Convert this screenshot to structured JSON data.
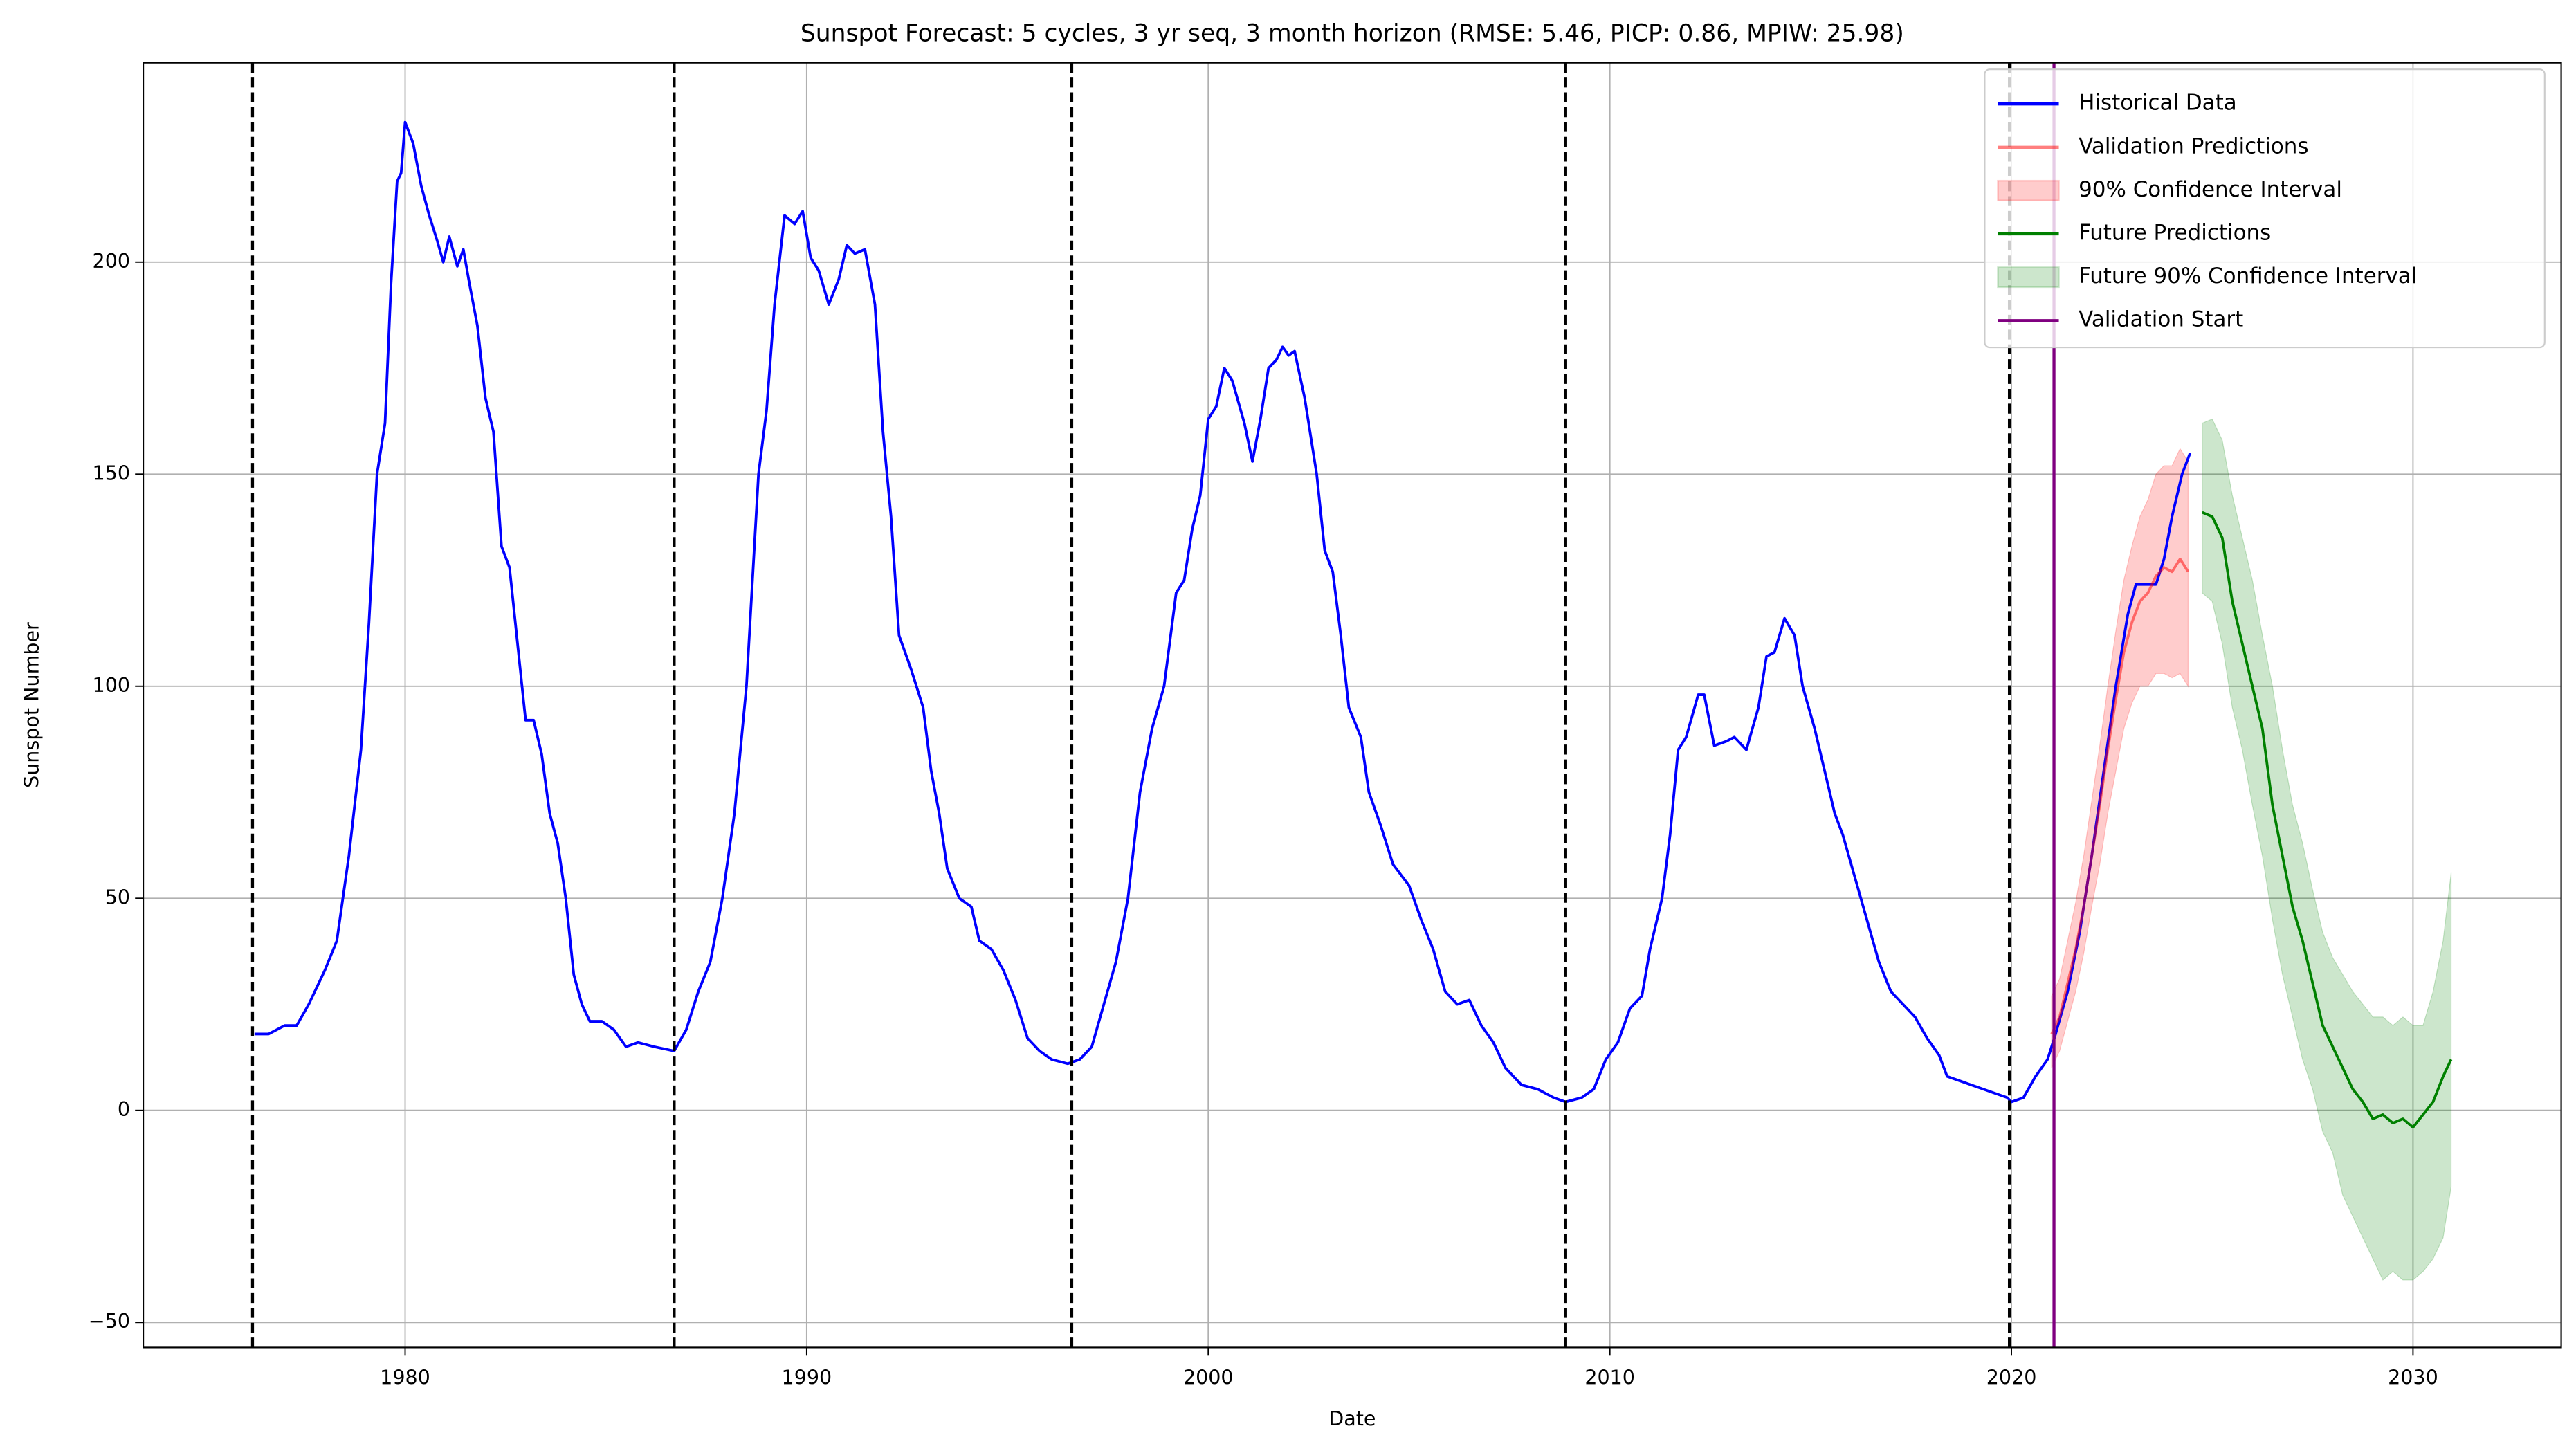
{
  "chart_data": {
    "type": "line",
    "title": "Sunspot Forecast: 5 cycles, 3 yr seq, 3 month horizon (RMSE: 5.46, PICP: 0.86, MPIW: 25.98)",
    "xlabel": "Date",
    "ylabel": "Sunspot Number",
    "xlim": [
      1973.48,
      2033.69
    ],
    "ylim": [
      -55.9,
      247
    ],
    "xticks": [
      1980,
      1990,
      2000,
      2010,
      2020,
      2030
    ],
    "yticks": [
      {
        "value": -50,
        "label": "−50"
      },
      0,
      50,
      100,
      150,
      200
    ],
    "grid": true,
    "legend": "upper right",
    "cycle_boundaries": {
      "color": "#000000",
      "x": [
        1976.2,
        1986.7,
        1996.6,
        2008.9,
        2019.95
      ]
    },
    "series": [
      {
        "kind": "line",
        "name": "Historical Data",
        "color": "#0000ff",
        "alpha": 1,
        "x": [
          1976.25,
          1976.6,
          1977.0,
          1977.3,
          1977.6,
          1978.0,
          1978.3,
          1978.6,
          1978.9,
          1979.1,
          1979.3,
          1979.5,
          1979.65,
          1979.8,
          1979.9,
          1980.0,
          1980.2,
          1980.4,
          1980.6,
          1980.8,
          1980.95,
          1981.1,
          1981.3,
          1981.45,
          1981.6,
          1981.8,
          1982.0,
          1982.2,
          1982.4,
          1982.6,
          1982.8,
          1983.0,
          1983.2,
          1983.4,
          1983.6,
          1983.8,
          1984.0,
          1984.2,
          1984.4,
          1984.6,
          1984.9,
          1985.2,
          1985.5,
          1985.8,
          1986.2,
          1986.7,
          1987.0,
          1987.3,
          1987.6,
          1987.9,
          1988.2,
          1988.5,
          1988.8,
          1989.0,
          1989.2,
          1989.45,
          1989.7,
          1989.9,
          1990.1,
          1990.3,
          1990.55,
          1990.8,
          1991.0,
          1991.2,
          1991.45,
          1991.7,
          1991.9,
          1992.1,
          1992.3,
          1992.6,
          1992.9,
          1993.1,
          1993.3,
          1993.5,
          1993.8,
          1994.1,
          1994.3,
          1994.6,
          1994.9,
          1995.2,
          1995.5,
          1995.8,
          1996.1,
          1996.5,
          1996.8,
          1997.1,
          1997.4,
          1997.7,
          1998.0,
          1998.3,
          1998.6,
          1998.9,
          1999.2,
          1999.4,
          1999.6,
          1999.8,
          2000.0,
          2000.2,
          2000.4,
          2000.6,
          2000.9,
          2001.1,
          2001.3,
          2001.5,
          2001.7,
          2001.85,
          2002.0,
          2002.15,
          2002.4,
          2002.7,
          2002.9,
          2003.1,
          2003.3,
          2003.5,
          2003.8,
          2004.0,
          2004.3,
          2004.6,
          2005.0,
          2005.3,
          2005.6,
          2005.9,
          2006.2,
          2006.5,
          2006.8,
          2007.1,
          2007.4,
          2007.8,
          2008.2,
          2008.6,
          2008.9,
          2009.3,
          2009.6,
          2009.9,
          2010.2,
          2010.5,
          2010.8,
          2011.0,
          2011.3,
          2011.5,
          2011.7,
          2011.9,
          2012.2,
          2012.35,
          2012.6,
          2012.9,
          2013.1,
          2013.4,
          2013.7,
          2013.9,
          2014.1,
          2014.35,
          2014.6,
          2014.8,
          2015.1,
          2015.4,
          2015.6,
          2015.8,
          2016.1,
          2016.4,
          2016.7,
          2017.0,
          2017.3,
          2017.6,
          2017.9,
          2018.2,
          2018.4,
          2018.7,
          2019.0,
          2019.3,
          2019.6,
          2019.9,
          2020.0,
          2020.3,
          2020.6,
          2020.9,
          2021.1,
          2021.4,
          2021.7,
          2022.0,
          2022.3,
          2022.6,
          2022.9,
          2023.1,
          2023.4,
          2023.6,
          2023.8,
          2024.0,
          2024.25,
          2024.45
        ],
        "values": [
          18,
          18,
          20,
          20,
          25,
          33,
          40,
          60,
          85,
          115,
          150,
          162,
          195,
          219,
          221,
          233,
          228,
          218,
          211,
          205,
          200,
          206,
          199,
          203,
          195,
          185,
          168,
          160,
          133,
          128,
          110,
          92,
          92,
          84,
          70,
          63,
          50,
          32,
          25,
          21,
          21,
          19,
          15,
          16,
          15,
          14,
          19,
          28,
          35,
          50,
          70,
          100,
          150,
          165,
          190,
          211,
          209,
          212,
          201,
          198,
          190,
          196,
          204,
          202,
          203,
          190,
          160,
          140,
          112,
          104,
          95,
          80,
          70,
          57,
          50,
          48,
          40,
          38,
          33,
          26,
          17,
          14,
          12,
          11,
          12,
          15,
          25,
          35,
          50,
          75,
          90,
          100,
          122,
          125,
          137,
          145,
          163,
          166,
          175,
          172,
          162,
          153,
          163,
          175,
          177,
          180,
          178,
          179,
          168,
          150,
          132,
          127,
          112,
          95,
          88,
          75,
          67,
          58,
          53,
          45,
          38,
          28,
          25,
          26,
          20,
          16,
          10,
          6,
          5,
          3,
          2,
          3,
          5,
          12,
          16,
          24,
          27,
          38,
          50,
          65,
          85,
          88,
          98,
          98,
          86,
          87,
          88,
          85,
          95,
          107,
          108,
          116,
          112,
          100,
          90,
          78,
          70,
          65,
          55,
          45,
          35,
          28,
          25,
          22,
          17,
          13,
          8,
          7,
          6,
          5,
          4,
          3,
          2,
          3,
          8,
          12,
          18,
          28,
          42,
          60,
          80,
          100,
          117,
          124,
          124,
          124,
          130,
          140,
          150,
          155
        ]
      },
      {
        "kind": "line",
        "name": "Validation Predictions",
        "color": "#ff0000",
        "alpha": 0.5,
        "x": [
          2021.0,
          2021.2,
          2021.4,
          2021.6,
          2021.8,
          2022.0,
          2022.2,
          2022.4,
          2022.6,
          2022.8,
          2023.0,
          2023.2,
          2023.4,
          2023.6,
          2023.8,
          2024.0,
          2024.2,
          2024.4
        ],
        "values": [
          18,
          22,
          30,
          38,
          48,
          60,
          72,
          85,
          97,
          108,
          115,
          120,
          122,
          126,
          128,
          127,
          130,
          127
        ]
      },
      {
        "kind": "band",
        "name": "90% Confidence Interval",
        "color": "#ff0000",
        "alpha": 0.2,
        "x": [
          2021.0,
          2021.2,
          2021.4,
          2021.6,
          2021.8,
          2022.0,
          2022.2,
          2022.4,
          2022.6,
          2022.8,
          2023.0,
          2023.2,
          2023.4,
          2023.6,
          2023.8,
          2024.0,
          2024.2,
          2024.4
        ],
        "lower": [
          10,
          14,
          21,
          28,
          37,
          48,
          58,
          70,
          80,
          90,
          96,
          100,
          100,
          103,
          103,
          102,
          103,
          100
        ],
        "upper": [
          27,
          31,
          40,
          49,
          60,
          73,
          86,
          100,
          113,
          125,
          133,
          140,
          144,
          150,
          152,
          152,
          156,
          153
        ]
      },
      {
        "kind": "line",
        "name": "Future Predictions",
        "color": "#008000",
        "alpha": 1,
        "x": [
          2024.75,
          2025.0,
          2025.25,
          2025.5,
          2025.75,
          2026.0,
          2026.25,
          2026.5,
          2026.75,
          2027.0,
          2027.25,
          2027.5,
          2027.75,
          2028.0,
          2028.25,
          2028.5,
          2028.75,
          2029.0,
          2029.25,
          2029.5,
          2029.75,
          2030.0,
          2030.25,
          2030.5,
          2030.75,
          2030.95
        ],
        "values": [
          141,
          140,
          135,
          120,
          110,
          100,
          90,
          72,
          60,
          48,
          40,
          30,
          20,
          15,
          10,
          5,
          2,
          -2,
          -1,
          -3,
          -2,
          -4,
          -1,
          2,
          8,
          12
        ]
      },
      {
        "kind": "band",
        "name": "Future 90% Confidence Interval",
        "color": "#008000",
        "alpha": 0.2,
        "x": [
          2024.75,
          2025.0,
          2025.25,
          2025.5,
          2025.75,
          2026.0,
          2026.25,
          2026.5,
          2026.75,
          2027.0,
          2027.25,
          2027.5,
          2027.75,
          2028.0,
          2028.25,
          2028.5,
          2028.75,
          2029.0,
          2029.25,
          2029.5,
          2029.75,
          2030.0,
          2030.25,
          2030.5,
          2030.75,
          2030.95
        ],
        "lower": [
          122,
          120,
          110,
          95,
          85,
          72,
          60,
          45,
          32,
          22,
          12,
          5,
          -5,
          -10,
          -20,
          -25,
          -30,
          -35,
          -40,
          -38,
          -40,
          -40,
          -38,
          -35,
          -30,
          -18
        ],
        "upper": [
          162,
          163,
          158,
          145,
          135,
          125,
          112,
          100,
          85,
          72,
          63,
          52,
          42,
          36,
          32,
          28,
          25,
          22,
          22,
          20,
          22,
          20,
          20,
          28,
          40,
          56
        ]
      },
      {
        "kind": "vline",
        "name": "Validation Start",
        "color": "#800080",
        "alpha": 1,
        "x": 2021.06
      }
    ]
  }
}
